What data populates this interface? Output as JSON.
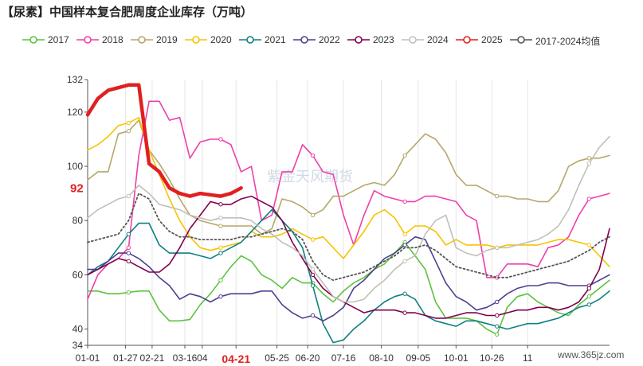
{
  "chart_data": {
    "type": "line",
    "title": "【尿素】中国样本复合肥周度企业库存（万吨）",
    "xlabel": "",
    "ylabel": "",
    "ylim": [
      34,
      132
    ],
    "yticks": [
      34,
      40,
      60,
      80,
      100,
      120,
      132
    ],
    "xlim": [
      1,
      52
    ],
    "xticks": [
      {
        "x": 1,
        "label": "01-01"
      },
      {
        "x": 4.7,
        "label": "01-27"
      },
      {
        "x": 7.3,
        "label": "02-21"
      },
      {
        "x": 10.5,
        "label": "03-16"
      },
      {
        "x": 12.2,
        "label": "04"
      },
      {
        "x": 15.5,
        "label": "04-21"
      },
      {
        "x": 19.5,
        "label": "05-25"
      },
      {
        "x": 22.5,
        "label": "06-20"
      },
      {
        "x": 26,
        "label": "07-16"
      },
      {
        "x": 29.7,
        "label": "08-10"
      },
      {
        "x": 33.3,
        "label": "09-05"
      },
      {
        "x": 37,
        "label": "10-01"
      },
      {
        "x": 40.5,
        "label": "10-26"
      },
      {
        "x": 44,
        "label": "11"
      }
    ],
    "highlight_tick": "04-21",
    "grid": "vertical",
    "legend_position": "top",
    "annotation": {
      "text": "92",
      "value": 92
    },
    "watermark": "紫金天风期货",
    "source": "www.365jz.com",
    "series": [
      {
        "name": "2017",
        "color": "#5cc23f",
        "values": [
          54,
          54,
          53,
          53,
          53.5,
          54,
          54,
          47,
          43,
          43,
          43.5,
          49,
          53,
          58,
          63,
          67,
          65,
          60,
          58,
          55,
          59,
          57,
          57,
          53,
          50,
          54,
          57,
          59,
          62,
          64,
          68,
          72,
          67,
          62,
          50,
          44,
          44,
          44,
          43,
          40,
          38,
          48,
          52,
          53,
          50,
          48,
          46,
          45,
          49,
          52,
          55,
          58
        ]
      },
      {
        "name": "2018",
        "color": "#ee3fa8",
        "values": [
          51,
          60,
          64,
          66,
          70,
          104,
          124,
          124,
          117,
          118,
          103,
          109,
          110,
          110,
          108,
          98,
          100,
          80,
          82,
          98,
          98,
          108,
          104,
          98,
          97,
          82,
          71,
          82,
          91,
          89,
          88,
          87,
          87,
          89,
          89,
          88,
          87,
          82,
          80,
          59,
          59,
          64,
          64,
          64,
          63,
          70,
          71,
          74,
          82,
          88,
          89,
          90
        ]
      },
      {
        "name": "2019",
        "color": "#b5a76a",
        "values": [
          95,
          98,
          98,
          112,
          113,
          117,
          106,
          101,
          95,
          88,
          82,
          80,
          79,
          78,
          78,
          78,
          78,
          75,
          77,
          88,
          87,
          85,
          82,
          84,
          89,
          89,
          91,
          93,
          94,
          93,
          97,
          104,
          108,
          112,
          110,
          105,
          97,
          93,
          93,
          91,
          89,
          89,
          88,
          88,
          87,
          87,
          91,
          100,
          102,
          103,
          103,
          104
        ]
      },
      {
        "name": "2020",
        "color": "#f5c400",
        "values": [
          106,
          108,
          111,
          115,
          116,
          118,
          106,
          97,
          88,
          80,
          74,
          70,
          69,
          70,
          71,
          72,
          76,
          74,
          74,
          75,
          77,
          75,
          73,
          74,
          70,
          66,
          71,
          76,
          82,
          84,
          81,
          75,
          78,
          78,
          76,
          71,
          73,
          71,
          71,
          71,
          70,
          71,
          71,
          71,
          71,
          72,
          73,
          73,
          72,
          71,
          67,
          63
        ]
      },
      {
        "name": "2021",
        "color": "#0f8080",
        "values": [
          60,
          63,
          65,
          70,
          75,
          79,
          79,
          71,
          68,
          68,
          68,
          67,
          66,
          68,
          70,
          72,
          76,
          80,
          84,
          80,
          76,
          70,
          56,
          42,
          35,
          36,
          40,
          43,
          47,
          50,
          52,
          53,
          51,
          45,
          43,
          42,
          41,
          43,
          43,
          42,
          41,
          40,
          41,
          42,
          42,
          43,
          44,
          46,
          48,
          49,
          51,
          54
        ]
      },
      {
        "name": "2022",
        "color": "#4e3f8f",
        "values": [
          62,
          62,
          65,
          68,
          68,
          66,
          63,
          59,
          56,
          51,
          53,
          52,
          50,
          52,
          53,
          53,
          53,
          54,
          54,
          49,
          46,
          44,
          45,
          43,
          45,
          48,
          55,
          58,
          62,
          66,
          68,
          71,
          74,
          73,
          65,
          57,
          52,
          50,
          47,
          48,
          50,
          53,
          55,
          56,
          56,
          57,
          57,
          56,
          56,
          56,
          58,
          60
        ]
      },
      {
        "name": "2023",
        "color": "#800050",
        "values": [
          60,
          62,
          64,
          66,
          65,
          63,
          61,
          61,
          64,
          70,
          77,
          82,
          87,
          86,
          86,
          88,
          89,
          87,
          85,
          80,
          72,
          66,
          60,
          55,
          52,
          50,
          48,
          46,
          47,
          47,
          47,
          46,
          46,
          45,
          44,
          44,
          45,
          46,
          46,
          45,
          45,
          46,
          47,
          47,
          48,
          48,
          47,
          48,
          50,
          55,
          62,
          77
        ]
      },
      {
        "name": "2024",
        "color": "#c0c0b8",
        "values": [
          81,
          84,
          86,
          88,
          89,
          93,
          90,
          86,
          85,
          84,
          82,
          81,
          80,
          81,
          81,
          81,
          80,
          77,
          75,
          72,
          70,
          67,
          62,
          57,
          52,
          50,
          50,
          51,
          55,
          58,
          62,
          65,
          67,
          75,
          80,
          82,
          70,
          68,
          67,
          69,
          70,
          70,
          71,
          72,
          73,
          75,
          78,
          84,
          93,
          101,
          107,
          111
        ]
      },
      {
        "name": "2025",
        "color": "#e02020",
        "values": [
          119,
          125,
          128,
          129,
          130,
          130,
          101,
          98,
          92,
          90,
          89,
          90,
          89.5,
          89,
          90,
          92
        ]
      },
      {
        "name": "2017-2024均值",
        "color": "#555555",
        "values": [
          72,
          73,
          74,
          75,
          80,
          90,
          88,
          80,
          76,
          74,
          74,
          73,
          73,
          73,
          73,
          74,
          74,
          75,
          76,
          77,
          76,
          73,
          65,
          60,
          58,
          59,
          60,
          61,
          63,
          65,
          67,
          70,
          70,
          71,
          69,
          66,
          63,
          62,
          61,
          60,
          59,
          59,
          60,
          61,
          62,
          63,
          64,
          65,
          67,
          69,
          72,
          74
        ]
      }
    ]
  }
}
